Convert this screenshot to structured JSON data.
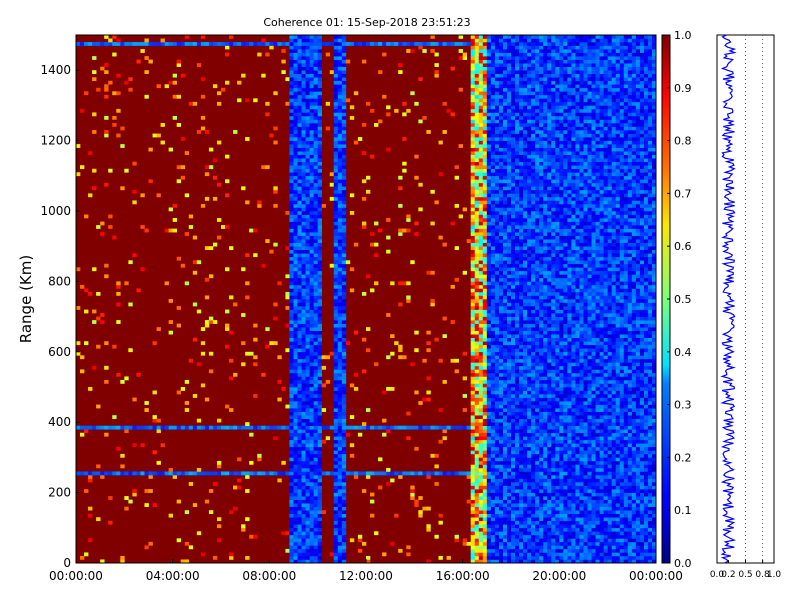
{
  "chart_data": [
    {
      "type": "heatmap",
      "title": "Coherence 01: 15-Sep-2018 23:51:23",
      "xlabel": "",
      "ylabel": "Range (Km)",
      "xlim": [
        "00:00:00",
        "24:00:00"
      ],
      "ylim": [
        0,
        1500
      ],
      "x_ticks": [
        "00:00:00",
        "04:00:00",
        "08:00:00",
        "12:00:00",
        "16:00:00",
        "20:00:00",
        "00:00:00"
      ],
      "y_ticks": [
        "0",
        "200",
        "400",
        "600",
        "800",
        "1000",
        "1200",
        "1400"
      ],
      "colorbar": {
        "colormap": "jet",
        "min": 0.0,
        "max": 1.0,
        "ticks": [
          "0.0",
          "0.1",
          "0.2",
          "0.3",
          "0.4",
          "0.5",
          "0.6",
          "0.7",
          "0.8",
          "0.9",
          "1.0"
        ]
      },
      "high_coherence_hours": [
        0,
        17
      ],
      "high_coherence_value": 1.0,
      "low_coherence_hours": [
        [
          8.9,
          10.1
        ],
        [
          10.7,
          11.1
        ],
        [
          17.0,
          24.0
        ]
      ],
      "low_coherence_value": 0.18,
      "low_range_bands_km": [
        [
          380,
          390
        ],
        [
          255,
          260
        ],
        [
          1470,
          1480
        ]
      ],
      "grid": false
    },
    {
      "type": "line",
      "title": "",
      "xlabel": "",
      "ylabel": "",
      "xlim": [
        0,
        1
      ],
      "x_ticks": [
        "0.0",
        "0.2",
        "0.5",
        "0.8",
        "1.0"
      ],
      "x_tick_values": [
        0.0,
        0.2,
        0.5,
        0.8,
        1.0
      ],
      "mean_value": 0.2,
      "orientation": "vertical",
      "color": "#0000ff",
      "grid_lines_at": [
        0.5,
        0.8
      ]
    }
  ]
}
